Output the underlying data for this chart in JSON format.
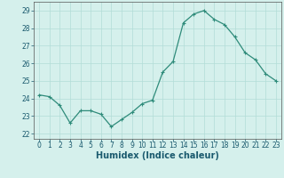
{
  "x": [
    0,
    1,
    2,
    3,
    4,
    5,
    6,
    7,
    8,
    9,
    10,
    11,
    12,
    13,
    14,
    15,
    16,
    17,
    18,
    19,
    20,
    21,
    22,
    23
  ],
  "y": [
    24.2,
    24.1,
    23.6,
    22.6,
    23.3,
    23.3,
    23.1,
    22.4,
    22.8,
    23.2,
    23.7,
    23.9,
    25.5,
    26.1,
    28.3,
    28.8,
    29.0,
    28.5,
    28.2,
    27.5,
    26.6,
    26.2,
    25.4,
    25.0
  ],
  "line_color": "#2e8b7a",
  "marker": "+",
  "marker_size": 3,
  "marker_linewidth": 0.8,
  "line_width": 0.9,
  "bg_color": "#d5f0ec",
  "grid_color": "#b2ddd7",
  "xlabel": "Humidex (Indice chaleur)",
  "ylabel_ticks": [
    22,
    23,
    24,
    25,
    26,
    27,
    28,
    29
  ],
  "xlim": [
    -0.5,
    23.5
  ],
  "ylim": [
    21.7,
    29.5
  ],
  "tick_fontsize": 5.5,
  "label_fontsize": 7,
  "xlabel_color": "#1a5a6e",
  "tick_color": "#1a5a6e",
  "spine_color": "#555555"
}
